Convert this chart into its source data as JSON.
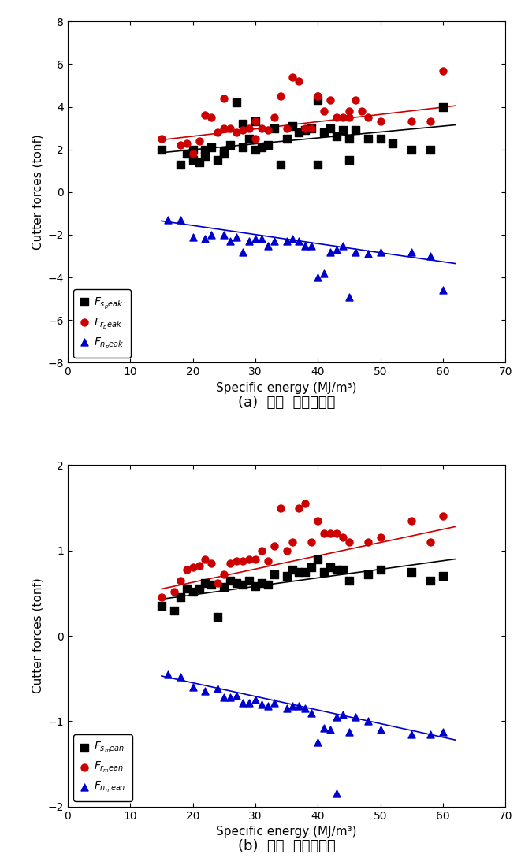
{
  "plot_a": {
    "xlabel": "Specific energy (MJ/m³)",
    "ylabel": "Cutter forces (tonf)",
    "subtitle": "(a)  최대  커터작용력",
    "xlim": [
      0,
      70
    ],
    "ylim": [
      -8,
      8
    ],
    "xticks": [
      0,
      10,
      20,
      30,
      40,
      50,
      60,
      70
    ],
    "yticks": [
      -8,
      -6,
      -4,
      -2,
      0,
      2,
      4,
      6,
      8
    ],
    "Fs_x": [
      15,
      18,
      19,
      20,
      20,
      21,
      22,
      22,
      23,
      24,
      25,
      25,
      26,
      27,
      28,
      28,
      29,
      30,
      30,
      31,
      32,
      33,
      34,
      35,
      36,
      37,
      38,
      39,
      40,
      40,
      41,
      42,
      43,
      44,
      45,
      45,
      46,
      48,
      50,
      52,
      55,
      58,
      60
    ],
    "Fs_y": [
      2.0,
      1.3,
      1.8,
      2.0,
      1.5,
      1.4,
      2.0,
      1.7,
      2.1,
      1.5,
      1.9,
      1.8,
      2.2,
      4.2,
      3.2,
      2.1,
      2.5,
      3.3,
      2.0,
      2.1,
      2.2,
      3.0,
      1.3,
      2.5,
      3.1,
      2.8,
      2.9,
      3.0,
      4.3,
      1.3,
      2.8,
      3.0,
      2.6,
      2.9,
      2.5,
      1.5,
      2.9,
      2.5,
      2.5,
      2.3,
      2.0,
      2.0,
      4.0
    ],
    "Fr_x": [
      15,
      18,
      19,
      20,
      21,
      22,
      23,
      24,
      25,
      25,
      26,
      27,
      28,
      29,
      30,
      30,
      31,
      32,
      33,
      34,
      35,
      36,
      37,
      38,
      39,
      40,
      40,
      41,
      42,
      43,
      44,
      45,
      45,
      46,
      47,
      48,
      50,
      55,
      58,
      60
    ],
    "Fr_y": [
      2.5,
      2.2,
      2.3,
      1.8,
      2.4,
      3.6,
      3.5,
      2.8,
      4.4,
      3.0,
      3.0,
      2.8,
      2.9,
      3.0,
      3.3,
      2.5,
      3.0,
      2.9,
      3.5,
      4.5,
      3.0,
      5.4,
      5.2,
      3.0,
      3.0,
      4.5,
      4.5,
      3.8,
      4.3,
      3.5,
      3.5,
      3.8,
      3.5,
      4.3,
      3.8,
      3.5,
      3.3,
      3.3,
      3.3,
      5.7
    ],
    "Fn_x": [
      16,
      18,
      20,
      22,
      23,
      25,
      26,
      27,
      28,
      29,
      30,
      31,
      32,
      33,
      35,
      36,
      37,
      38,
      39,
      40,
      41,
      42,
      43,
      44,
      45,
      46,
      48,
      50,
      55,
      58,
      60
    ],
    "Fn_y": [
      -1.3,
      -1.3,
      -2.1,
      -2.2,
      -2.0,
      -2.0,
      -2.3,
      -2.1,
      -2.8,
      -2.3,
      -2.2,
      -2.2,
      -2.5,
      -2.3,
      -2.3,
      -2.2,
      -2.3,
      -2.5,
      -2.5,
      -4.0,
      -3.8,
      -2.8,
      -2.7,
      -2.5,
      -4.9,
      -2.8,
      -2.9,
      -2.8,
      -2.8,
      -3.0,
      -4.6
    ],
    "Fs_trend_x": [
      15,
      62
    ],
    "Fs_trend_y": [
      1.85,
      3.15
    ],
    "Fr_trend_x": [
      15,
      62
    ],
    "Fr_trend_y": [
      2.45,
      4.05
    ],
    "Fn_trend_x": [
      15,
      62
    ],
    "Fn_trend_y": [
      -1.35,
      -3.35
    ],
    "legend_label_0": "F",
    "legend_sub_0": "s_peak",
    "legend_label_1": "F",
    "legend_sub_1": "r_peak",
    "legend_label_2": "F",
    "legend_sub_2": "n_peak"
  },
  "plot_b": {
    "xlabel": "Specific energy (MJ/m³)",
    "ylabel": "Cutter forces (tonf)",
    "subtitle": "(b)  평균  커터작용력",
    "xlim": [
      0,
      70
    ],
    "ylim": [
      -2,
      2
    ],
    "xticks": [
      0,
      10,
      20,
      30,
      40,
      50,
      60,
      70
    ],
    "yticks": [
      -2,
      -1,
      0,
      1,
      2
    ],
    "Fs_x": [
      15,
      17,
      18,
      19,
      20,
      21,
      22,
      23,
      24,
      25,
      26,
      27,
      28,
      29,
      30,
      31,
      32,
      33,
      35,
      36,
      37,
      38,
      39,
      40,
      41,
      42,
      43,
      44,
      45,
      48,
      50,
      55,
      58,
      60
    ],
    "Fs_y": [
      0.35,
      0.3,
      0.45,
      0.55,
      0.52,
      0.55,
      0.62,
      0.6,
      0.22,
      0.57,
      0.65,
      0.62,
      0.6,
      0.65,
      0.58,
      0.62,
      0.6,
      0.72,
      0.7,
      0.78,
      0.75,
      0.75,
      0.8,
      0.9,
      0.75,
      0.8,
      0.78,
      0.78,
      0.65,
      0.72,
      0.78,
      0.75,
      0.65,
      0.7
    ],
    "Fr_x": [
      15,
      17,
      18,
      19,
      20,
      21,
      22,
      23,
      24,
      25,
      26,
      27,
      28,
      29,
      30,
      31,
      32,
      33,
      34,
      35,
      36,
      37,
      38,
      39,
      40,
      41,
      42,
      43,
      44,
      45,
      48,
      50,
      55,
      58,
      60
    ],
    "Fr_y": [
      0.45,
      0.52,
      0.65,
      0.78,
      0.8,
      0.82,
      0.9,
      0.85,
      0.62,
      0.72,
      0.85,
      0.88,
      0.88,
      0.9,
      0.9,
      1.0,
      0.88,
      1.05,
      1.5,
      1.0,
      1.1,
      1.5,
      1.55,
      1.1,
      1.35,
      1.2,
      1.2,
      1.2,
      1.15,
      1.1,
      1.1,
      1.15,
      1.35,
      1.1,
      1.4
    ],
    "Fn_x": [
      16,
      18,
      20,
      22,
      24,
      25,
      26,
      27,
      28,
      29,
      30,
      31,
      32,
      33,
      35,
      36,
      37,
      38,
      39,
      40,
      41,
      42,
      43,
      44,
      45,
      46,
      48,
      50,
      55,
      58,
      60
    ],
    "Fn_y": [
      -0.45,
      -0.48,
      -0.6,
      -0.65,
      -0.62,
      -0.72,
      -0.72,
      -0.7,
      -0.78,
      -0.78,
      -0.75,
      -0.8,
      -0.82,
      -0.78,
      -0.85,
      -0.82,
      -0.82,
      -0.85,
      -0.9,
      -1.25,
      -1.08,
      -1.1,
      -0.95,
      -0.92,
      -1.13,
      -0.95,
      -1.0,
      -1.1,
      -1.15,
      -1.15,
      -1.13
    ],
    "Fn_outlier_x": [
      43
    ],
    "Fn_outlier_y": [
      -1.85
    ],
    "Fs_trend_x": [
      15,
      62
    ],
    "Fs_trend_y": [
      0.43,
      0.9
    ],
    "Fr_trend_x": [
      15,
      62
    ],
    "Fr_trend_y": [
      0.55,
      1.28
    ],
    "Fn_trend_x": [
      15,
      62
    ],
    "Fn_trend_y": [
      -0.47,
      -1.22
    ],
    "legend_label_0": "F",
    "legend_sub_0": "s_mean",
    "legend_label_1": "F",
    "legend_sub_1": "r_mean",
    "legend_label_2": "F",
    "legend_sub_2": "n_mean"
  },
  "black": "#000000",
  "red": "#cc0000",
  "blue": "#0000cc",
  "marker_size": 42,
  "linewidth": 1.2,
  "tick_labelsize": 10,
  "axis_labelsize": 11,
  "legend_fontsize": 10,
  "subtitle_fontsize": 13
}
